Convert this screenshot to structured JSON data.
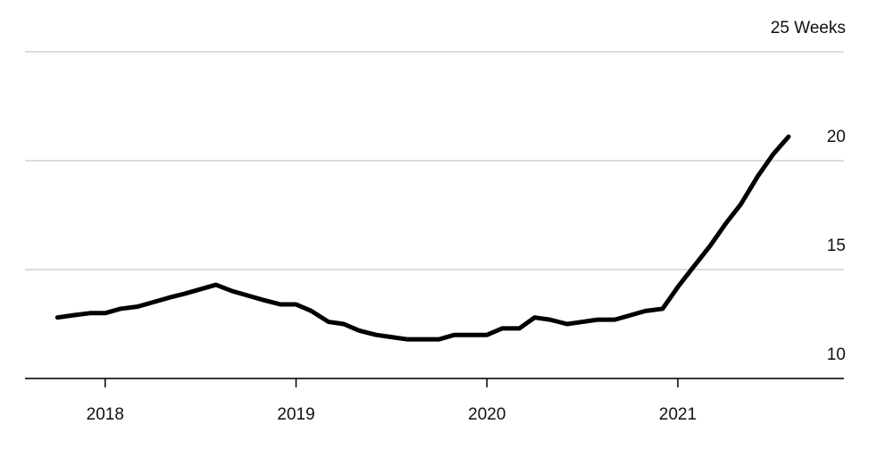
{
  "chart_data": {
    "type": "line",
    "x": [
      2017.75,
      2017.83,
      2017.92,
      2018,
      2018.08,
      2018.17,
      2018.25,
      2018.33,
      2018.42,
      2018.5,
      2018.58,
      2018.67,
      2018.75,
      2018.83,
      2018.92,
      2019,
      2019.08,
      2019.17,
      2019.25,
      2019.33,
      2019.42,
      2019.5,
      2019.58,
      2019.67,
      2019.75,
      2019.83,
      2019.92,
      2020,
      2020.08,
      2020.17,
      2020.25,
      2020.33,
      2020.42,
      2020.5,
      2020.58,
      2020.67,
      2020.75,
      2020.83,
      2020.92,
      2021,
      2021.08,
      2021.17,
      2021.25,
      2021.33,
      2021.42,
      2021.5,
      2021.58
    ],
    "series": [
      {
        "color": "#000000",
        "values": [
          12.8,
          12.9,
          13.0,
          13.0,
          13.2,
          13.3,
          13.5,
          13.7,
          13.9,
          14.1,
          14.3,
          14.0,
          13.8,
          13.6,
          13.4,
          13.4,
          13.1,
          12.6,
          12.5,
          12.2,
          12.0,
          11.9,
          11.8,
          11.8,
          11.8,
          12.0,
          12.0,
          12.0,
          12.3,
          12.3,
          12.8,
          12.7,
          12.5,
          12.6,
          12.7,
          12.7,
          12.9,
          13.1,
          13.2,
          14.2,
          15.1,
          16.1,
          17.1,
          18.0,
          19.3,
          20.3,
          21.1
        ]
      }
    ],
    "xlim": [
      2017.58,
      2021.87
    ],
    "xticks": [
      2018,
      2019,
      2020,
      2021
    ],
    "ylim": [
      10,
      25
    ],
    "yticks": [
      10,
      15,
      20,
      {
        "value": 25,
        "label": "25 Weeks"
      }
    ],
    "grid": true
  }
}
